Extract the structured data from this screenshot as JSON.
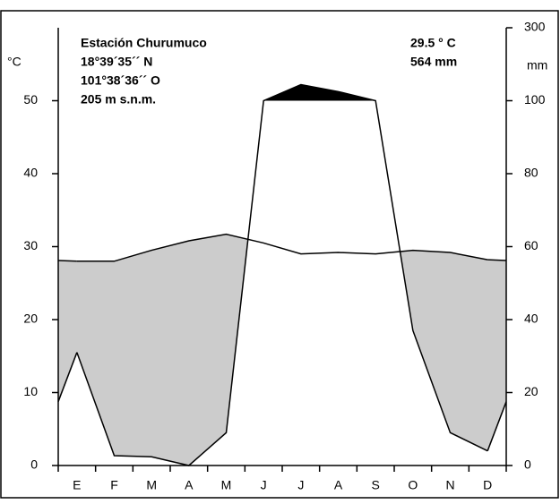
{
  "chart_data": {
    "type": "climate",
    "station": [
      "Estación Churumuco",
      "18°39´35´´ N",
      "101°38´36´´ O",
      "205 m s.n.m."
    ],
    "annual_temperature": "29.5 ° C",
    "annual_precipitation": "564 mm",
    "ylabel": "°C",
    "y2label": "mm",
    "categories": [
      "E",
      "F",
      "M",
      "A",
      "M",
      "J",
      "J",
      "A",
      "S",
      "O",
      "N",
      "D"
    ],
    "series": [
      {
        "name": "temperatura",
        "color": "#000000",
        "values": [
          28,
          28,
          29.5,
          30.8,
          31.7,
          30.5,
          29,
          29.2,
          29,
          29.5,
          29.2,
          28.2
        ]
      },
      {
        "name": "precipitación",
        "color": "#000000",
        "axis": "y2",
        "values": [
          31,
          2.7,
          2.4,
          0,
          9,
          100,
          144,
          125,
          100,
          37,
          9,
          4
        ]
      }
    ],
    "ylim": [
      0,
      60
    ],
    "yticks": [
      0,
      10,
      20,
      30,
      40,
      50
    ],
    "y2lim": [
      0,
      300
    ],
    "y2ticks": [
      0,
      20,
      40,
      60,
      80,
      100,
      300
    ],
    "dry_color": "#cccccc",
    "wet_color": "#000000"
  }
}
